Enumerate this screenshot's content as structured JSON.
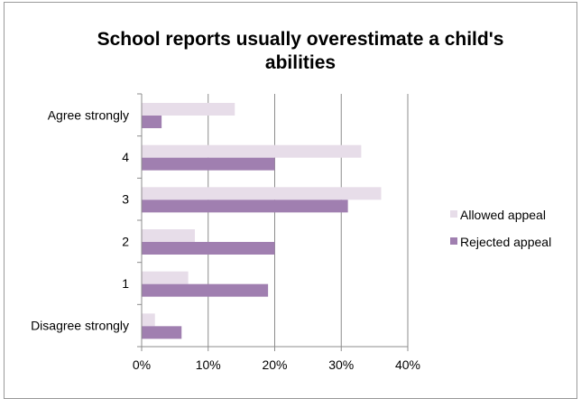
{
  "chart_data": {
    "type": "bar",
    "orientation": "horizontal",
    "title_lines": [
      "School reports usually overestimate a child's",
      "abilities"
    ],
    "categories": [
      "Agree strongly",
      "4",
      "3",
      "2",
      "1",
      "Disagree strongly"
    ],
    "series": [
      {
        "name": "Allowed appeal",
        "values": [
          14,
          33,
          36,
          8,
          7,
          2
        ],
        "color": "#e7dde9"
      },
      {
        "name": "Rejected appeal",
        "values": [
          3,
          20,
          31,
          20,
          19,
          6
        ],
        "color": "#a07fb0"
      }
    ],
    "xlim": [
      0,
      40
    ],
    "xticks": [
      "0%",
      "10%",
      "20%",
      "30%",
      "40%"
    ],
    "xtick_values": [
      0,
      10,
      20,
      30,
      40
    ],
    "grid": "vertical",
    "legend": "right"
  }
}
